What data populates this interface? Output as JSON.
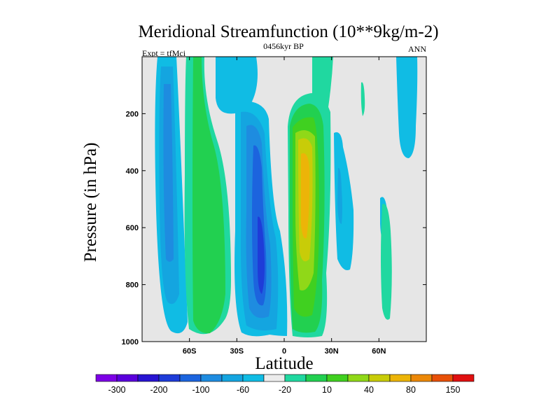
{
  "chart_data": {
    "type": "heatmap",
    "title": "Meridional Streamfunction (10**9kg/m-2)",
    "left_string": "Expt = tfMci",
    "center_string": "0456kyr BP",
    "right_string": "ANN",
    "xlabel": "Latitude",
    "ylabel": "Pressure (in hPa)",
    "x_ticks": [
      {
        "value": -60,
        "label": "60S"
      },
      {
        "value": -30,
        "label": "30S"
      },
      {
        "value": 0,
        "label": "0"
      },
      {
        "value": 30,
        "label": "30N"
      },
      {
        "value": 60,
        "label": "60N"
      }
    ],
    "y_ticks": [
      200,
      400,
      600,
      800,
      1000
    ],
    "xlim": [
      -90,
      90
    ],
    "ylim": [
      1000,
      0
    ],
    "y_reversed": true,
    "background_color": "#e6e6e6",
    "colorbar": {
      "levels": [
        "-300",
        "-200",
        "-100",
        "-60",
        "-20",
        "10",
        "40",
        "80",
        "150",
        "250"
      ],
      "colors": [
        "#7d00e6",
        "#5a00dc",
        "#2814d2",
        "#1e3cd8",
        "#1c64de",
        "#1e8ce0",
        "#14a5e0",
        "#10bce4",
        "#ececec",
        "#20d8a0",
        "#22d050",
        "#40d020",
        "#90d818",
        "#c8cc08",
        "#ecb408",
        "#ec8808",
        "#e85008",
        "#e01010"
      ]
    },
    "regions": [
      {
        "name": "north-polar-cell",
        "kind": "negative",
        "lon_range": [
          70,
          84
        ],
        "p_range": [
          0,
          330
        ],
        "peak_value": -20
      },
      {
        "name": "mid-lat-north-weak-1",
        "kind": "negative",
        "lon_range": [
          31,
          38
        ],
        "p_range": [
          250,
          800
        ],
        "peak_value": -40
      },
      {
        "name": "mid-lat-north-weak-2",
        "kind": "negative",
        "lon_range": [
          62,
          66
        ],
        "p_range": [
          240,
          640
        ],
        "peak_value": -20
      },
      {
        "name": "north-positive-streak",
        "kind": "positive",
        "lon_range": [
          51,
          52
        ],
        "p_range": [
          90,
          220
        ],
        "peak_value": 15
      },
      {
        "name": "north-positive-cell",
        "kind": "positive",
        "lon_range": [
          58,
          66
        ],
        "p_range": [
          560,
          920
        ],
        "peak_value": 15
      },
      {
        "name": "south-polar-cell",
        "kind": "negative",
        "lon_range": [
          -80,
          -63
        ],
        "p_range": [
          0,
          940
        ],
        "peak_value": -60
      },
      {
        "name": "ferrel-south",
        "kind": "positive",
        "lon_range": [
          -57,
          -37
        ],
        "p_range": [
          0,
          960
        ],
        "peak_value": 40
      },
      {
        "name": "hadley-south",
        "kind": "negative",
        "lon_range": [
          -30,
          -2
        ],
        "p_range": [
          0,
          960
        ],
        "peak_value": -120
      },
      {
        "name": "hadley-north",
        "kind": "positive",
        "lon_range": [
          5,
          22
        ],
        "p_range": [
          0,
          990
        ],
        "peak_value": 100
      }
    ]
  }
}
